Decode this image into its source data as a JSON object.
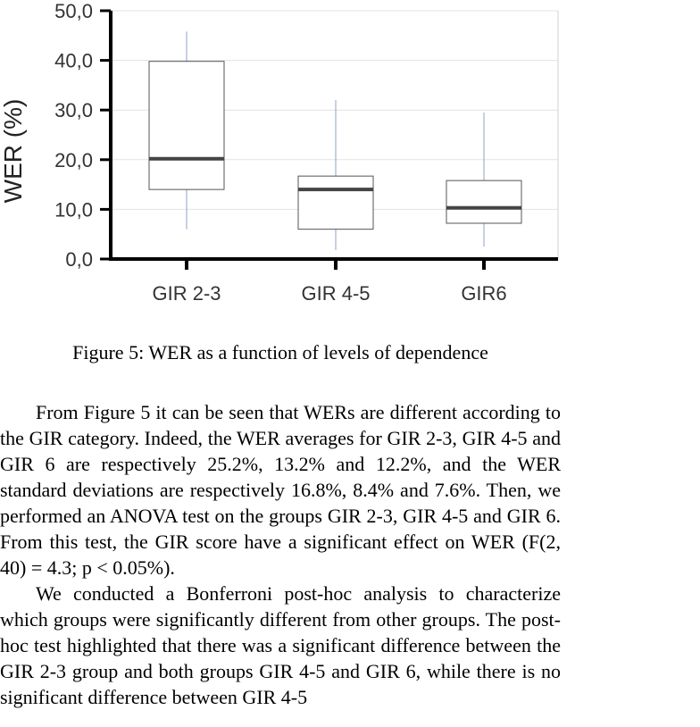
{
  "chart_data": {
    "type": "box",
    "ylabel": "WER (%)",
    "xlabel": "",
    "ylim": [
      0,
      50
    ],
    "yticks": [
      0,
      10,
      20,
      30,
      40,
      50
    ],
    "ytick_labels": [
      "0,0",
      "10,0",
      "20,0",
      "30,0",
      "40,0",
      "50,0"
    ],
    "grid": true,
    "categories": [
      "GIR 2-3",
      "GIR 4-5",
      "GIR6"
    ],
    "boxes": [
      {
        "category": "GIR 2-3",
        "min": 6.0,
        "q1": 14.0,
        "median": 20.2,
        "q3": 39.8,
        "max": 45.8
      },
      {
        "category": "GIR 4-5",
        "min": 1.8,
        "q1": 6.0,
        "median": 14.0,
        "q3": 16.7,
        "max": 32.0
      },
      {
        "category": "GIR6",
        "min": 2.5,
        "q1": 7.2,
        "median": 10.3,
        "q3": 15.8,
        "max": 29.5
      }
    ]
  },
  "caption": "Figure 5: WER as a function of levels of dependence",
  "paragraph1": "From Figure 5 it can be seen that WERs are different according to the GIR category. Indeed, the WER averages for GIR 2-3, GIR 4-5 and GIR 6 are respectively 25.2%, 13.2% and 12.2%, and the WER standard deviations are respectively 16.8%, 8.4% and 7.6%. Then, we performed an ANOVA test on the groups GIR 2-3, GIR 4-5 and GIR 6. From this test, the GIR score have a significant effect on WER (F(2, 40) = 4.3; p < 0.05%).",
  "paragraph2": "We conducted a Bonferroni post-hoc analysis to characterize which groups were significantly different from other groups. The post-hoc test highlighted that there was a significant difference between the GIR 2-3 group and both groups GIR 4-5 and GIR 6, while there is no significant difference between GIR 4-5"
}
